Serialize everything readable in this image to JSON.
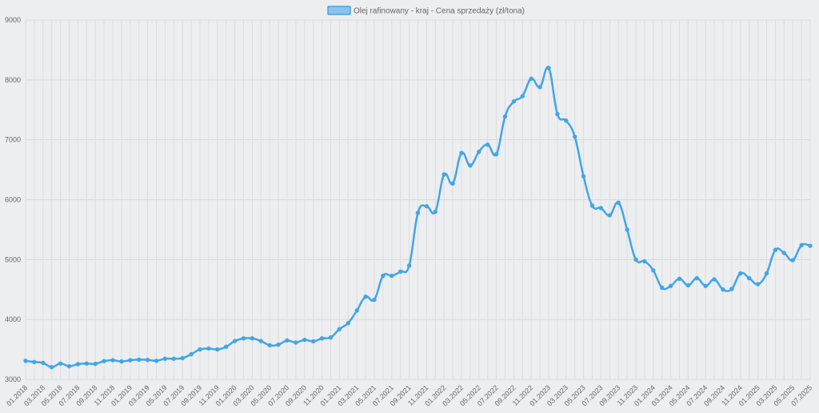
{
  "chart_data": {
    "type": "line",
    "title": "",
    "xlabel": "",
    "ylabel": "",
    "ylim": [
      3000,
      9000
    ],
    "yticks": [
      3000,
      4000,
      5000,
      6000,
      7000,
      8000,
      9000
    ],
    "grid": true,
    "legend_position": "top-center",
    "series": [
      {
        "name": "Olej rafinowany - kraj - Cena sprzedaży (zł/tona)",
        "color": "#42a5e8",
        "values": [
          3310,
          3290,
          3275,
          3205,
          3265,
          3220,
          3255,
          3265,
          3260,
          3305,
          3320,
          3300,
          3320,
          3330,
          3325,
          3310,
          3345,
          3345,
          3355,
          3420,
          3500,
          3515,
          3500,
          3545,
          3640,
          3685,
          3685,
          3640,
          3570,
          3580,
          3650,
          3615,
          3660,
          3635,
          3685,
          3700,
          3840,
          3940,
          4150,
          4380,
          4330,
          4730,
          4730,
          4800,
          4900,
          5780,
          5890,
          5800,
          6420,
          6270,
          6780,
          6570,
          6800,
          6920,
          6760,
          7390,
          7640,
          7730,
          8020,
          7880,
          8200,
          7430,
          7320,
          7050,
          6390,
          5900,
          5860,
          5740,
          5950,
          5500,
          5000,
          4970,
          4820,
          4530,
          4560,
          4680,
          4570,
          4690,
          4560,
          4670,
          4500,
          4510,
          4770,
          4690,
          4590,
          4770,
          5160,
          5110,
          4990,
          5240,
          5230
        ]
      }
    ],
    "x_tick_labels": [
      "01.2018",
      "03.2018",
      "05.2018",
      "07.2018",
      "09.2018",
      "11.2018",
      "01.2019",
      "03.2019",
      "05.2019",
      "07.2019",
      "09.2019",
      "11.2019",
      "01.2020",
      "03.2020",
      "05.2020",
      "07.2020",
      "09.2020",
      "11.2020",
      "01.2021",
      "03.2021",
      "05.2021",
      "07.2021",
      "09.2021",
      "11.2021",
      "01.2022",
      "03.2022",
      "05.2022",
      "07.2022",
      "09.2022",
      "11.2022",
      "01.2023",
      "03.2023",
      "05.2023",
      "07.2023",
      "09.2023",
      "11.2023",
      "01.2024",
      "03.2024",
      "05.2024",
      "07.2024",
      "09.2024",
      "11.2024",
      "01.2025",
      "03.2025",
      "05.2025",
      "07.2025"
    ]
  }
}
